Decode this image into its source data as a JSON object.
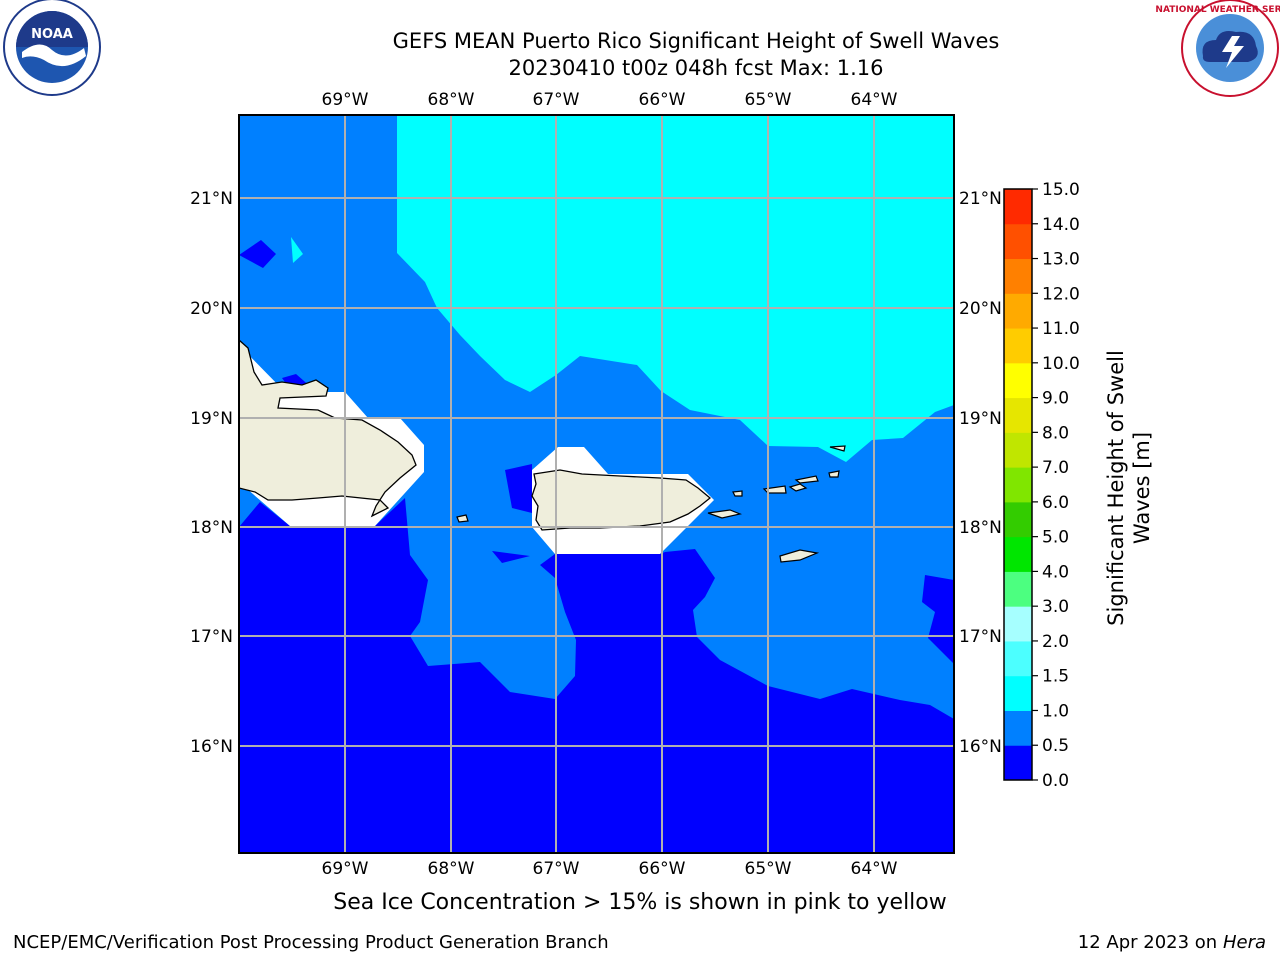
{
  "header": {
    "title": "GEFS MEAN Puerto Rico Significant Height of Swell Waves",
    "subtitle": "20230410 t00z 048h fcst   Max: 1.16"
  },
  "logos": {
    "left": "noaa-logo",
    "right": "national-weather-service-logo",
    "left_text": "NOAA",
    "right_text": "NATIONAL WEATHER SERVICE"
  },
  "map": {
    "lon_labels": [
      "69°W",
      "68°W",
      "67°W",
      "66°W",
      "65°W",
      "64°W"
    ],
    "lat_labels": [
      "21°N",
      "20°N",
      "19°N",
      "18°N",
      "17°N",
      "16°N"
    ],
    "land_color": "#efeedc",
    "region": "Puerto Rico"
  },
  "colorbar": {
    "label": "Significant Height of Swell Waves [m]",
    "ticks": [
      "15.0",
      "14.0",
      "13.0",
      "12.0",
      "11.0",
      "10.0",
      "9.0",
      "8.0",
      "7.0",
      "6.0",
      "5.0",
      "4.0",
      "3.0",
      "2.0",
      "1.5",
      "1.0",
      "0.5",
      "0.0"
    ],
    "colors": [
      "#0000ff",
      "#0080ff",
      "#00ffff",
      "#4cffff",
      "#a6ffff",
      "#4cff80",
      "#00e600",
      "#33cc00",
      "#80e600",
      "#c0e600",
      "#e6e600",
      "#ffff00",
      "#ffcc00",
      "#ffaa00",
      "#ff8000",
      "#ff5000",
      "#ff2a00",
      "#ff0000"
    ]
  },
  "notes": {
    "sea_ice": "Sea Ice Concentration > 15% is shown in pink to yellow"
  },
  "footer": {
    "left": "NCEP/EMC/Verification Post Processing Product Generation Branch",
    "date": "12 Apr 2023 on ",
    "host": "Hera"
  }
}
